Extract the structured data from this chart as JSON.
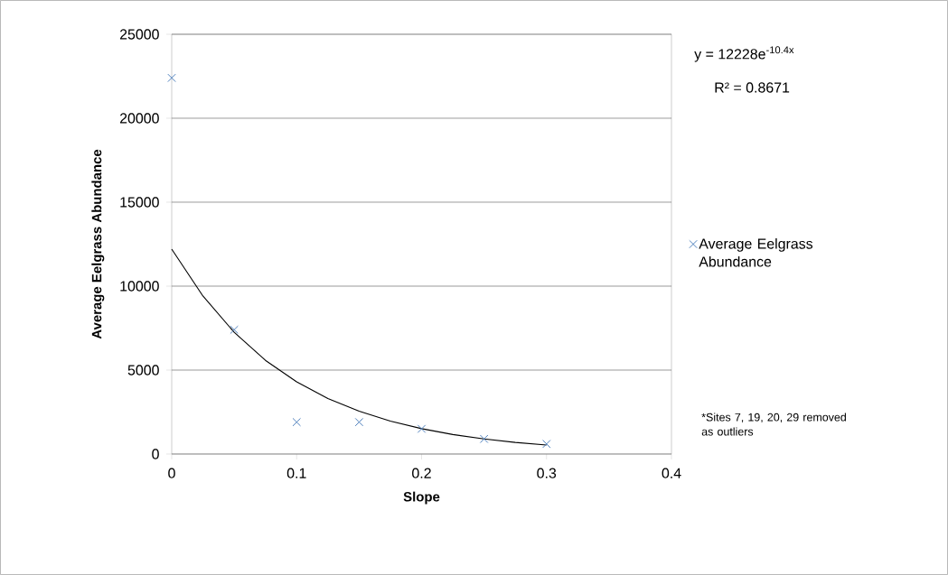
{
  "chart_data": {
    "type": "scatter",
    "xlabel": "Slope",
    "ylabel": "Average Eelgrass Abundance",
    "xlim": [
      0,
      0.4
    ],
    "ylim": [
      0,
      25000
    ],
    "xticks": [
      0,
      0.1,
      0.2,
      0.3,
      0.4
    ],
    "yticks": [
      0,
      5000,
      10000,
      15000,
      20000,
      25000
    ],
    "grid": "y",
    "legend": "right",
    "marker": "cross",
    "series": [
      {
        "name": "Average Eelgrass Abundance",
        "color": "#4f81bd",
        "x": [
          0,
          0.05,
          0.1,
          0.15,
          0.2,
          0.25,
          0.3
        ],
        "values": [
          22400,
          7400,
          1900,
          1900,
          1500,
          900,
          600
        ]
      },
      {
        "type": "line",
        "marker": "none",
        "color": "#000000",
        "x": [
          0,
          0.025,
          0.05,
          0.075,
          0.1,
          0.125,
          0.15,
          0.175,
          0.2,
          0.225,
          0.25,
          0.275,
          0.3
        ],
        "values": [
          12200,
          9410,
          7250,
          5580,
          4300,
          3310,
          2550,
          1960,
          1510,
          1160,
          900,
          690,
          540
        ]
      }
    ],
    "annotations": [
      "y = 12228e$^{-10.4x}$",
      "R² = 0.8671",
      "*Sites 7, 19, 20, 29 removed as outliers"
    ]
  }
}
